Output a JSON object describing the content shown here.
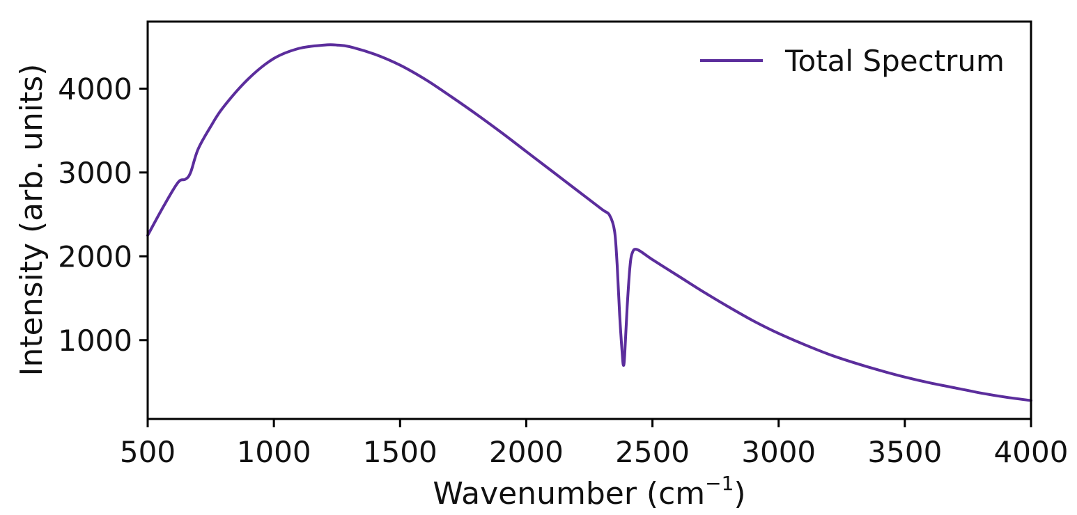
{
  "chart_data": {
    "type": "line",
    "title": "",
    "xlabel": "Wavenumber (cm",
    "xlabel_sup": "−1",
    "xlabel_end": ")",
    "ylabel": "Intensity (arb. units)",
    "xlim": [
      500,
      4000
    ],
    "ylim": [
      60,
      4800
    ],
    "xticks": [
      500,
      1000,
      1500,
      2000,
      2500,
      3000,
      3500,
      4000
    ],
    "yticks": [
      1000,
      2000,
      3000,
      4000
    ],
    "grid": false,
    "legend": {
      "placement": "top-right",
      "entries": [
        "Total Spectrum"
      ]
    },
    "series": [
      {
        "name": "Total Spectrum",
        "color": "#5b2d9c",
        "x": [
          500,
          560,
          620,
          650,
          670,
          700,
          750,
          800,
          900,
          1000,
          1100,
          1200,
          1250,
          1300,
          1400,
          1500,
          1600,
          1700,
          1800,
          1900,
          2000,
          2100,
          2200,
          2300,
          2330,
          2350,
          2360,
          2370,
          2380,
          2385,
          2390,
          2400,
          2410,
          2420,
          2440,
          2500,
          2600,
          2700,
          2800,
          2900,
          3000,
          3100,
          3200,
          3300,
          3400,
          3500,
          3600,
          3700,
          3800,
          3900,
          4000
        ],
        "y": [
          2250,
          2580,
          2880,
          2920,
          3000,
          3280,
          3550,
          3780,
          4120,
          4360,
          4480,
          4520,
          4520,
          4500,
          4410,
          4280,
          4110,
          3910,
          3700,
          3480,
          3250,
          3020,
          2790,
          2560,
          2490,
          2300,
          1900,
          1300,
          850,
          700,
          820,
          1400,
          1850,
          2040,
          2080,
          1960,
          1770,
          1580,
          1400,
          1230,
          1080,
          950,
          830,
          730,
          640,
          560,
          490,
          430,
          370,
          320,
          280
        ]
      }
    ]
  }
}
